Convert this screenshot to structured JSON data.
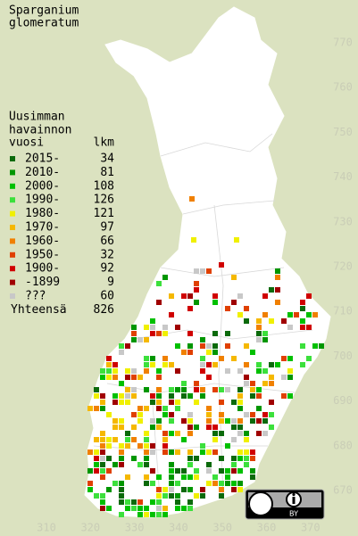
{
  "title": [
    "Sparganium",
    "glomeratum"
  ],
  "legend": {
    "heading": [
      "Uusimman",
      "havainnon"
    ],
    "col_year": "vuosi",
    "col_count": "lkm",
    "items": [
      {
        "label": "2015-",
        "count": 34,
        "color": "#0b6a0b"
      },
      {
        "label": "2010-",
        "count": 81,
        "color": "#009600"
      },
      {
        "label": "2000-",
        "count": 108,
        "color": "#00c000"
      },
      {
        "label": "1990-",
        "count": 126,
        "color": "#3ce03c"
      },
      {
        "label": "1980-",
        "count": 121,
        "color": "#f0f000"
      },
      {
        "label": "1970-",
        "count": 97,
        "color": "#f5b800"
      },
      {
        "label": "1960-",
        "count": 66,
        "color": "#f08000"
      },
      {
        "label": "1950-",
        "count": 32,
        "color": "#e04000"
      },
      {
        "label": "1900-",
        "count": 92,
        "color": "#d00000"
      },
      {
        "label": "-1899",
        "count": 9,
        "color": "#a00000"
      },
      {
        "label": "???",
        "count": 60,
        "color": "#c8c8c8"
      }
    ],
    "total": {
      "label": "Yhteensä",
      "count": 826
    }
  },
  "axes": {
    "x_ticks": [
      310,
      320,
      330,
      340,
      350,
      360,
      370
    ],
    "y_ticks": [
      670,
      680,
      690,
      700,
      710,
      720,
      730,
      740,
      750,
      760,
      770
    ]
  },
  "license": {
    "by": "BY"
  }
}
